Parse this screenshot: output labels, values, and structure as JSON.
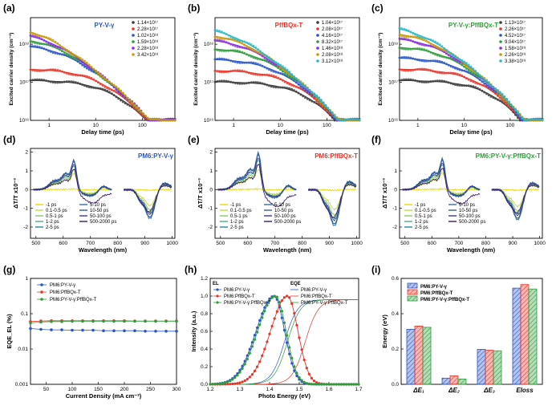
{
  "colors": {
    "black": "#3a3a3a",
    "red": "#e8352a",
    "blue": "#2a55c8",
    "green": "#2e9c3a",
    "purple": "#8a2be2",
    "gold": "#c99a06",
    "cyan": "#28b8c8",
    "magenta": "#d43ad4",
    "blueTitle": "#2a55c8",
    "redTitle": "#e8352a",
    "greenTitle": "#2e9c3a"
  },
  "panels": {
    "a": {
      "letter": "(a)",
      "title": "PY-V-γ",
      "titleColor": "#2a55c8",
      "ylabel": "Excited carrier density (cm⁻³)",
      "xlabel": "Delay time (ps)",
      "legend": [
        "1.14×10¹⁷",
        "2.28×10¹⁷",
        "1.02×10¹⁸",
        "1.59×10¹⁸",
        "2.28×10¹⁸",
        "3.42×10¹⁸"
      ]
    },
    "b": {
      "letter": "(b)",
      "title": "PffBQx-T",
      "titleColor": "#e8352a",
      "ylabel": "Excited carrier density (cm⁻³)",
      "xlabel": "Delay time (ps)",
      "legend": [
        "1.04×10¹⁷",
        "2.08×10¹⁷",
        "4.16×10¹⁷",
        "8.32×10¹⁷",
        "1.46×10¹⁸",
        "2.08×10¹⁸",
        "3.12×10¹⁸"
      ]
    },
    "c": {
      "letter": "(c)",
      "title": "PY-V-γ:PffBQx-T",
      "titleColor": "#2e9c3a",
      "ylabel": "Excited carrier density (cm⁻³)",
      "xlabel": "Delay time (ps)",
      "legend": [
        "1.13×10¹⁷",
        "2.26×10¹⁷",
        "4.52×10¹⁷",
        "9.04×10¹⁷",
        "1.58×10¹⁸",
        "2.26×10¹⁸",
        "3.38×10¹⁸"
      ]
    },
    "d": {
      "letter": "(d)",
      "title": "PM6:PY-V-γ",
      "titleColor": "#2a55c8",
      "ylabel": "ΔT/T x10⁻³",
      "xlabel": "Wavelength (nm)"
    },
    "e": {
      "letter": "(e)",
      "title": "PM6:PffBQx-T",
      "titleColor": "#e8352a",
      "ylabel": "ΔT/T x10⁻³",
      "xlabel": "Wavelength (nm)"
    },
    "f": {
      "letter": "(f)",
      "title": "PM6:PY-V-γ:PffBQx-T",
      "titleColor": "#2e9c3a",
      "ylabel": "ΔT/T x10⁻³",
      "xlabel": "Wavelength (nm)"
    },
    "g": {
      "letter": "(g)",
      "ylabel": "EQE_EL (%)",
      "xlabel": "Current Density (mA cm⁻²)"
    },
    "h": {
      "letter": "(h)",
      "ylabel": "Intensity (a.u.)",
      "xlabel": "Photo Energy (eV)",
      "el_label": "EL",
      "eqe_label": "EQE"
    },
    "i": {
      "letter": "(i)",
      "ylabel": "Energy (eV)"
    }
  },
  "ta_legend": [
    "-1 ps",
    "0.1-0.5 ps",
    "0.5-1 ps",
    "1-2 ps",
    "2-5 ps",
    "5-10 ps",
    "10-50 ps",
    "50-100 ps",
    "500-2000 ps"
  ],
  "chart_data": [
    {
      "id": "a",
      "type": "scatter",
      "xscale": "log",
      "yscale": "log",
      "xlim": [
        0.4,
        500
      ],
      "ylim": [
        1e+16,
        5e+18
      ],
      "x_ticks": [
        "1",
        "10",
        "100"
      ],
      "y_ticks": [
        "10¹⁶",
        "10¹⁷",
        "10¹⁸"
      ],
      "series": [
        {
          "name": "1.14×10¹⁷",
          "n0": 1.14e+17,
          "color": "#3a3a3a"
        },
        {
          "name": "2.28×10¹⁷",
          "n0": 2.28e+17,
          "color": "#e8352a"
        },
        {
          "name": "1.02×10¹⁸",
          "n0": 1.02e+18,
          "color": "#2a55c8"
        },
        {
          "name": "1.59×10¹⁸",
          "n0": 1.59e+18,
          "color": "#2e9c3a"
        },
        {
          "name": "2.28×10¹⁸",
          "n0": 2.28e+18,
          "color": "#8a2be2"
        },
        {
          "name": "3.42×10¹⁸",
          "n0": 3.42e+18,
          "color": "#c99a06"
        }
      ]
    },
    {
      "id": "b",
      "type": "scatter",
      "xscale": "log",
      "yscale": "log",
      "xlim": [
        0.4,
        500
      ],
      "ylim": [
        1e+16,
        5e+18
      ],
      "x_ticks": [
        "1",
        "10",
        "100"
      ],
      "y_ticks": [
        "10¹⁶",
        "10¹⁷",
        "10¹⁸"
      ],
      "series": [
        {
          "name": "1.04×10¹⁷",
          "n0": 1.04e+17,
          "color": "#3a3a3a"
        },
        {
          "name": "2.08×10¹⁷",
          "n0": 2.08e+17,
          "color": "#e8352a"
        },
        {
          "name": "4.16×10¹⁷",
          "n0": 4.16e+17,
          "color": "#2a55c8"
        },
        {
          "name": "8.32×10¹⁷",
          "n0": 8.32e+17,
          "color": "#2e9c3a"
        },
        {
          "name": "1.46×10¹⁸",
          "n0": 1.46e+18,
          "color": "#8a2be2"
        },
        {
          "name": "2.08×10¹⁸",
          "n0": 2.08e+18,
          "color": "#c99a06"
        },
        {
          "name": "3.12×10¹⁸",
          "n0": 3.12e+18,
          "color": "#28b8c8"
        }
      ]
    },
    {
      "id": "c",
      "type": "scatter",
      "xscale": "log",
      "yscale": "log",
      "xlim": [
        0.4,
        500
      ],
      "ylim": [
        1e+16,
        5e+18
      ],
      "x_ticks": [
        "1",
        "10",
        "100"
      ],
      "y_ticks": [
        "10¹⁶",
        "10¹⁷",
        "10¹⁸"
      ],
      "series": [
        {
          "name": "1.13×10¹⁷",
          "n0": 1.13e+17,
          "color": "#3a3a3a"
        },
        {
          "name": "2.26×10¹⁷",
          "n0": 2.26e+17,
          "color": "#e8352a"
        },
        {
          "name": "4.52×10¹⁷",
          "n0": 4.52e+17,
          "color": "#2a55c8"
        },
        {
          "name": "9.04×10¹⁷",
          "n0": 9.04e+17,
          "color": "#2e9c3a"
        },
        {
          "name": "1.58×10¹⁸",
          "n0": 1.58e+18,
          "color": "#8a2be2"
        },
        {
          "name": "2.26×10¹⁸",
          "n0": 2.26e+18,
          "color": "#c99a06"
        },
        {
          "name": "3.38×10¹⁸",
          "n0": 3.38e+18,
          "color": "#28b8c8"
        }
      ]
    },
    {
      "id": "d",
      "type": "line",
      "xlim": [
        480,
        1010
      ],
      "ylim": [
        -2.6,
        2.2
      ],
      "x_ticks": [
        500,
        600,
        700,
        800,
        900,
        1000
      ],
      "y_ticks": [
        -2,
        -1,
        0,
        1,
        2
      ],
      "amp": 1.0
    },
    {
      "id": "e",
      "type": "line",
      "xlim": [
        480,
        1010
      ],
      "ylim": [
        -2.6,
        2.2
      ],
      "x_ticks": [
        500,
        600,
        700,
        800,
        900,
        1000
      ],
      "y_ticks": [
        -2,
        -1,
        0,
        1,
        2
      ],
      "amp": 1.25
    },
    {
      "id": "f",
      "type": "line",
      "xlim": [
        480,
        1010
      ],
      "ylim": [
        -2.6,
        2.2
      ],
      "x_ticks": [
        500,
        600,
        700,
        800,
        900,
        1000
      ],
      "y_ticks": [
        -2,
        -1,
        0,
        1
      ],
      "amp": 1.05
    },
    {
      "id": "g",
      "type": "scatter",
      "yscale": "log",
      "xlim": [
        20,
        300
      ],
      "ylim": [
        0.001,
        1
      ],
      "x_ticks": [
        50,
        100,
        150,
        200,
        250,
        300
      ],
      "y_ticks": [
        "0.001",
        "0.01",
        "0.1",
        "1"
      ],
      "x": [
        20,
        40,
        60,
        80,
        100,
        120,
        140,
        160,
        180,
        200,
        220,
        240,
        260,
        280,
        300
      ],
      "series": [
        {
          "name": "PM6:PY-V-γ",
          "color": "#2a55c8",
          "values": [
            0.038,
            0.036,
            0.035,
            0.035,
            0.034,
            0.034,
            0.034,
            0.033,
            0.033,
            0.033,
            0.033,
            0.032,
            0.032,
            0.032,
            0.032
          ]
        },
        {
          "name": "PM6:PffBQx-T",
          "color": "#e8352a",
          "values": [
            0.06,
            0.062,
            0.063,
            0.063,
            0.063,
            0.063,
            0.063,
            0.063,
            0.063,
            0.063,
            0.062,
            0.062,
            0.062,
            0.062,
            0.062
          ]
        },
        {
          "name": "PM6:PY-V-γ:PffBQx-T",
          "color": "#2e9c3a",
          "values": [
            0.055,
            0.058,
            0.06,
            0.06,
            0.061,
            0.061,
            0.061,
            0.061,
            0.061,
            0.061,
            0.061,
            0.061,
            0.061,
            0.061,
            0.061
          ]
        }
      ]
    },
    {
      "id": "h",
      "type": "line",
      "xlim": [
        1.2,
        1.7
      ],
      "ylim": [
        0,
        1.2
      ],
      "x_ticks": [
        "1.2",
        "1.3",
        "1.4",
        "1.5",
        "1.6",
        "1.7"
      ],
      "y_ticks": [
        "0.0",
        "0.2",
        "0.4",
        "0.6",
        "0.8",
        "1.0",
        "1.2"
      ],
      "el_series": [
        {
          "name": "PM6:PY-V-γ",
          "color": "#2a55c8",
          "peak": 1.415,
          "w1": 0.085,
          "w2": 0.05
        },
        {
          "name": "PM6:PffBQx-T",
          "color": "#e8352a",
          "peak": 1.46,
          "w1": 0.08,
          "w2": 0.05
        },
        {
          "name": "PM6:PY-V-γ:PffBQx-T",
          "color": "#2e9c3a",
          "peak": 1.42,
          "w1": 0.085,
          "w2": 0.05
        }
      ],
      "eqe_series": [
        {
          "name": "PM6:PY-V-γ",
          "color": "#2a55c8",
          "edge": 1.45
        },
        {
          "name": "PM6:PffBQx-T",
          "color": "#e8352a",
          "edge": 1.52
        },
        {
          "name": "PM6:PY-V-γ:PffBQx-T",
          "color": "#2e9c3a",
          "edge": 1.46
        }
      ]
    },
    {
      "id": "i",
      "type": "bar",
      "ylim": [
        0,
        0.6
      ],
      "y_ticks": [
        "0.0",
        "0.2",
        "0.4",
        "0.6"
      ],
      "categories": [
        "ΔE₁",
        "ΔE₂",
        "ΔE₃",
        "E_loss"
      ],
      "series": [
        {
          "name": "PM6:PY-V-γ",
          "color": "#2a55c8",
          "values": [
            0.312,
            0.035,
            0.198,
            0.545
          ]
        },
        {
          "name": "PM6:PffBQx-T",
          "color": "#e8352a",
          "values": [
            0.33,
            0.048,
            0.193,
            0.565
          ]
        },
        {
          "name": "PM6:PY-V-γ:PffBQx-T",
          "color": "#2e9c3a",
          "values": [
            0.323,
            0.03,
            0.19,
            0.54
          ]
        }
      ]
    }
  ]
}
